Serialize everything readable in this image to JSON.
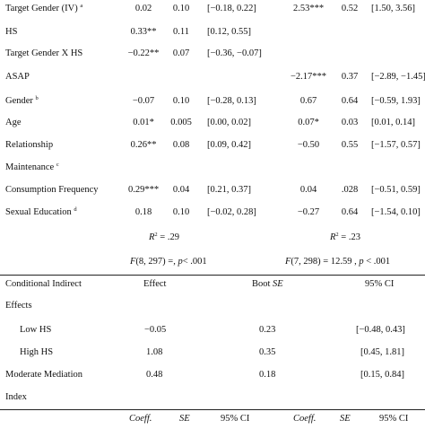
{
  "table1": {
    "rows": [
      {
        "label": "Target Gender (IV)",
        "sup": "a",
        "v": [
          "0.02",
          "0.10",
          "[−0.18, 0.22]",
          "2.53***",
          "0.52",
          "[1.50, 3.56]"
        ]
      },
      {
        "label": "HS",
        "sup": "",
        "v": [
          "0.33**",
          "0.11",
          "[0.12, 0.55]",
          "",
          "",
          ""
        ]
      },
      {
        "label": "Target Gender X HS",
        "sup": "",
        "v": [
          "−0.22**",
          "0.07",
          "[−0.36, −0.07]",
          "",
          "",
          ""
        ]
      },
      {
        "label": "ASAP",
        "sup": "",
        "v": [
          "",
          "",
          "",
          "−2.17***",
          "0.37",
          "[−2.89, −1.45]"
        ]
      },
      {
        "label": "Gender",
        "sup": "b",
        "v": [
          "−0.07",
          "0.10",
          "[−0.28, 0.13]",
          "0.67",
          "0.64",
          "[−0.59, 1.93]"
        ]
      },
      {
        "label": "Age",
        "sup": "",
        "v": [
          "0.01*",
          "0.005",
          "[0.00, 0.02]",
          "0.07*",
          "0.03",
          "[0.01, 0.14]"
        ]
      },
      {
        "label": "Relationship",
        "sup": "",
        "v": [
          "0.26**",
          "0.08",
          "[0.09, 0.42]",
          "−0.50",
          "0.55",
          "[−1.57, 0.57]"
        ]
      },
      {
        "label": "Maintenance",
        "sup": "c",
        "v": [
          "",
          "",
          "",
          "",
          "",
          ""
        ]
      },
      {
        "label": "Consumption Frequency",
        "sup": "",
        "v": [
          "0.29***",
          "0.04",
          "[0.21, 0.37]",
          "0.04",
          ".028",
          "[−0.51, 0.59]"
        ]
      },
      {
        "label": "Sexual Education",
        "sup": "d",
        "v": [
          "0.18",
          "0.10",
          "[−0.02, 0.28]",
          "−0.27",
          "0.64",
          "[−1.54, 0.10]"
        ]
      }
    ],
    "r2": {
      "left_label": "R",
      "left_sup": "2",
      "left_value": " = .29",
      "right_label": "R",
      "right_sup": "2",
      "right_value": " = .23"
    },
    "f": {
      "left_F": "F",
      "left_rest": "(8, 297) =,  ",
      "left_p": "p",
      "left_end": "< .001",
      "right_F": "F",
      "right_rest": "(7, 298) = 12.59 , ",
      "right_p": "p",
      "right_end": " < .001"
    }
  },
  "table2": {
    "headers": {
      "label_line1": "Conditional Indirect",
      "label_line2": "Effects",
      "effect": "Effect",
      "boot": "Boot ",
      "boot_se": "SE",
      "ci": "95% CI"
    },
    "rows": [
      {
        "label": "Low HS",
        "effect": "−0.05",
        "se": "0.23",
        "ci": "[−0.48, 0.43]"
      },
      {
        "label": "High HS",
        "effect": "1.08",
        "se": "0.35",
        "ci": "[0.45, 1.81]"
      }
    ],
    "moderated": {
      "label_line1": "Moderate Mediation",
      "label_line2": "Index",
      "effect": "0.48",
      "se": "0.18",
      "ci": "[0.15, 0.84]"
    },
    "footer": {
      "coeff1": "Coeff.",
      "se1": "SE",
      "ci1": "95% CI",
      "coeff2": "Coeff.",
      "se2": "SE",
      "ci2": "95% CI"
    }
  }
}
